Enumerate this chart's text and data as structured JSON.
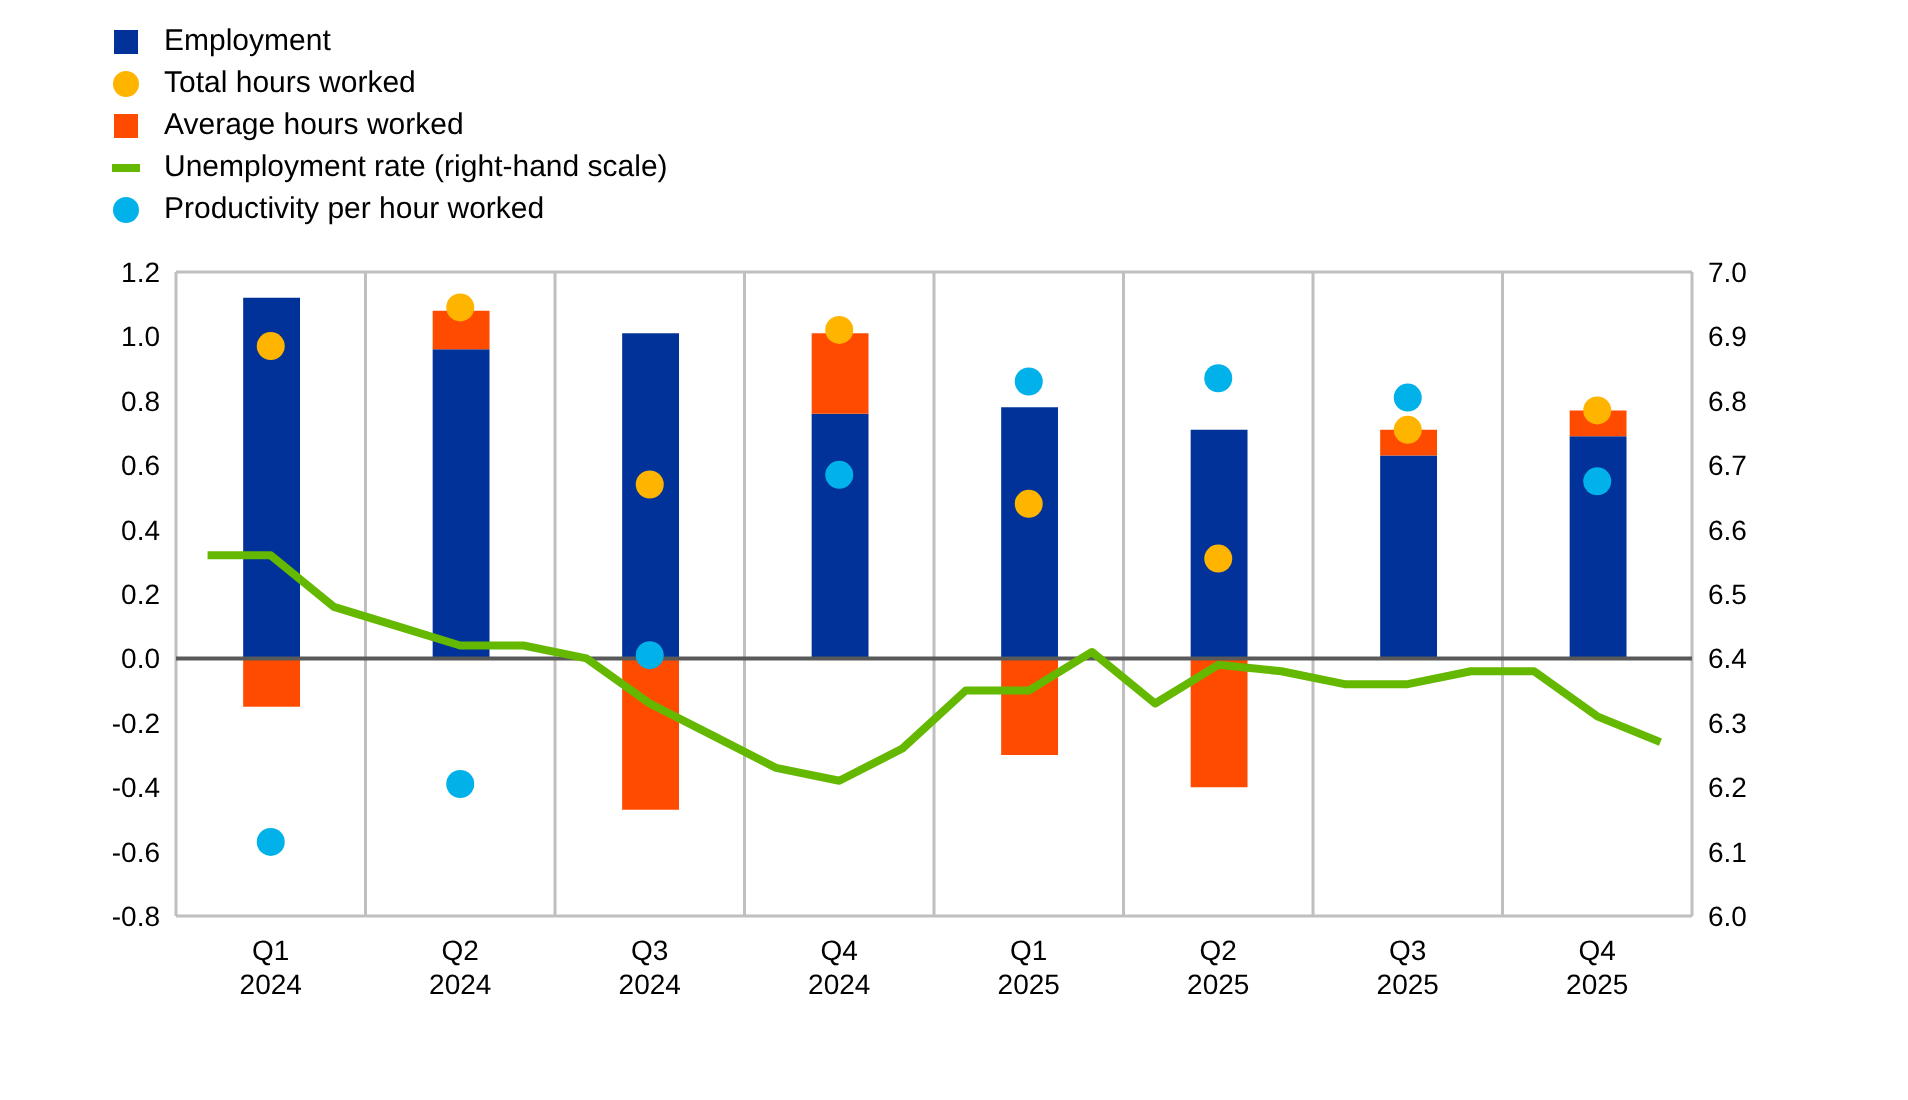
{
  "chart_data": {
    "type": "bar",
    "stacked": true,
    "grid": true,
    "legend": "top left",
    "categories": [
      null,
      "Q1\n2024",
      null,
      null,
      "Q2\n2024",
      null,
      null,
      "Q3\n2024",
      null,
      null,
      "Q4\n2024",
      null,
      null,
      "Q1\n2025",
      null,
      null,
      "Q2\n2025",
      null,
      null,
      "Q3\n2025",
      null,
      null,
      "Q4\n2025",
      null
    ],
    "series": [
      {
        "name": "Employment",
        "color": "#003299",
        "values": [
          null,
          1.12,
          null,
          null,
          0.96,
          null,
          null,
          1.01,
          null,
          null,
          0.76,
          null,
          null,
          0.78,
          null,
          null,
          0.71,
          null,
          null,
          0.63,
          null,
          null,
          0.69,
          null
        ]
      },
      {
        "name": "Total hours worked",
        "type": "scatter",
        "color": "#ffb400",
        "values": [
          null,
          0.97,
          null,
          null,
          1.09,
          null,
          null,
          0.54,
          null,
          null,
          1.02,
          null,
          null,
          0.48,
          null,
          null,
          0.31,
          null,
          null,
          0.71,
          null,
          null,
          0.77,
          null
        ]
      },
      {
        "name": "Average hours worked",
        "color": "#ff4b00",
        "values": [
          null,
          -0.15,
          null,
          null,
          0.12,
          null,
          null,
          -0.47,
          null,
          null,
          0.25,
          null,
          null,
          -0.3,
          null,
          null,
          -0.4,
          null,
          null,
          0.08,
          null,
          null,
          0.08,
          null
        ]
      },
      {
        "name": "Unemployment rate (right-hand scale)",
        "type": "line",
        "axis": "y2",
        "color": "#65b800",
        "values": [
          6.56,
          6.56,
          6.48,
          6.45,
          6.42,
          6.42,
          6.4,
          6.33,
          6.28,
          6.23,
          6.21,
          6.26,
          6.35,
          6.35,
          6.41,
          6.33,
          6.39,
          6.38,
          6.36,
          6.36,
          6.38,
          6.38,
          6.31,
          6.27
        ]
      },
      {
        "name": "Productivity per hour worked",
        "type": "scatter",
        "color": "#00b1ea",
        "values": [
          null,
          -0.57,
          null,
          null,
          -0.39,
          null,
          null,
          0.01,
          null,
          null,
          0.57,
          null,
          null,
          0.86,
          null,
          null,
          0.87,
          null,
          null,
          0.81,
          null,
          null,
          0.55,
          null
        ]
      }
    ],
    "ylim": [
      -0.8,
      1.2
    ],
    "yticks": [
      {
        "value": -0.8,
        "label": "-0.8"
      },
      -0.6,
      -0.4,
      -0.2,
      {
        "value": 0,
        "label": "0.0"
      },
      0.2,
      0.4,
      0.6,
      0.8,
      {
        "value": 1,
        "label": "1.0"
      },
      1.2
    ],
    "y2lim": [
      6.0,
      7.0
    ],
    "y2ticks": [
      {
        "value": 6,
        "label": "6.0"
      },
      6.1,
      6.2,
      6.3,
      6.4,
      6.5,
      6.6,
      6.7,
      6.8,
      6.9,
      {
        "value": 7,
        "label": "7.0"
      }
    ],
    "ref_lines": [
      {
        "axis": "y",
        "value": 0,
        "color": "#595959"
      }
    ]
  }
}
